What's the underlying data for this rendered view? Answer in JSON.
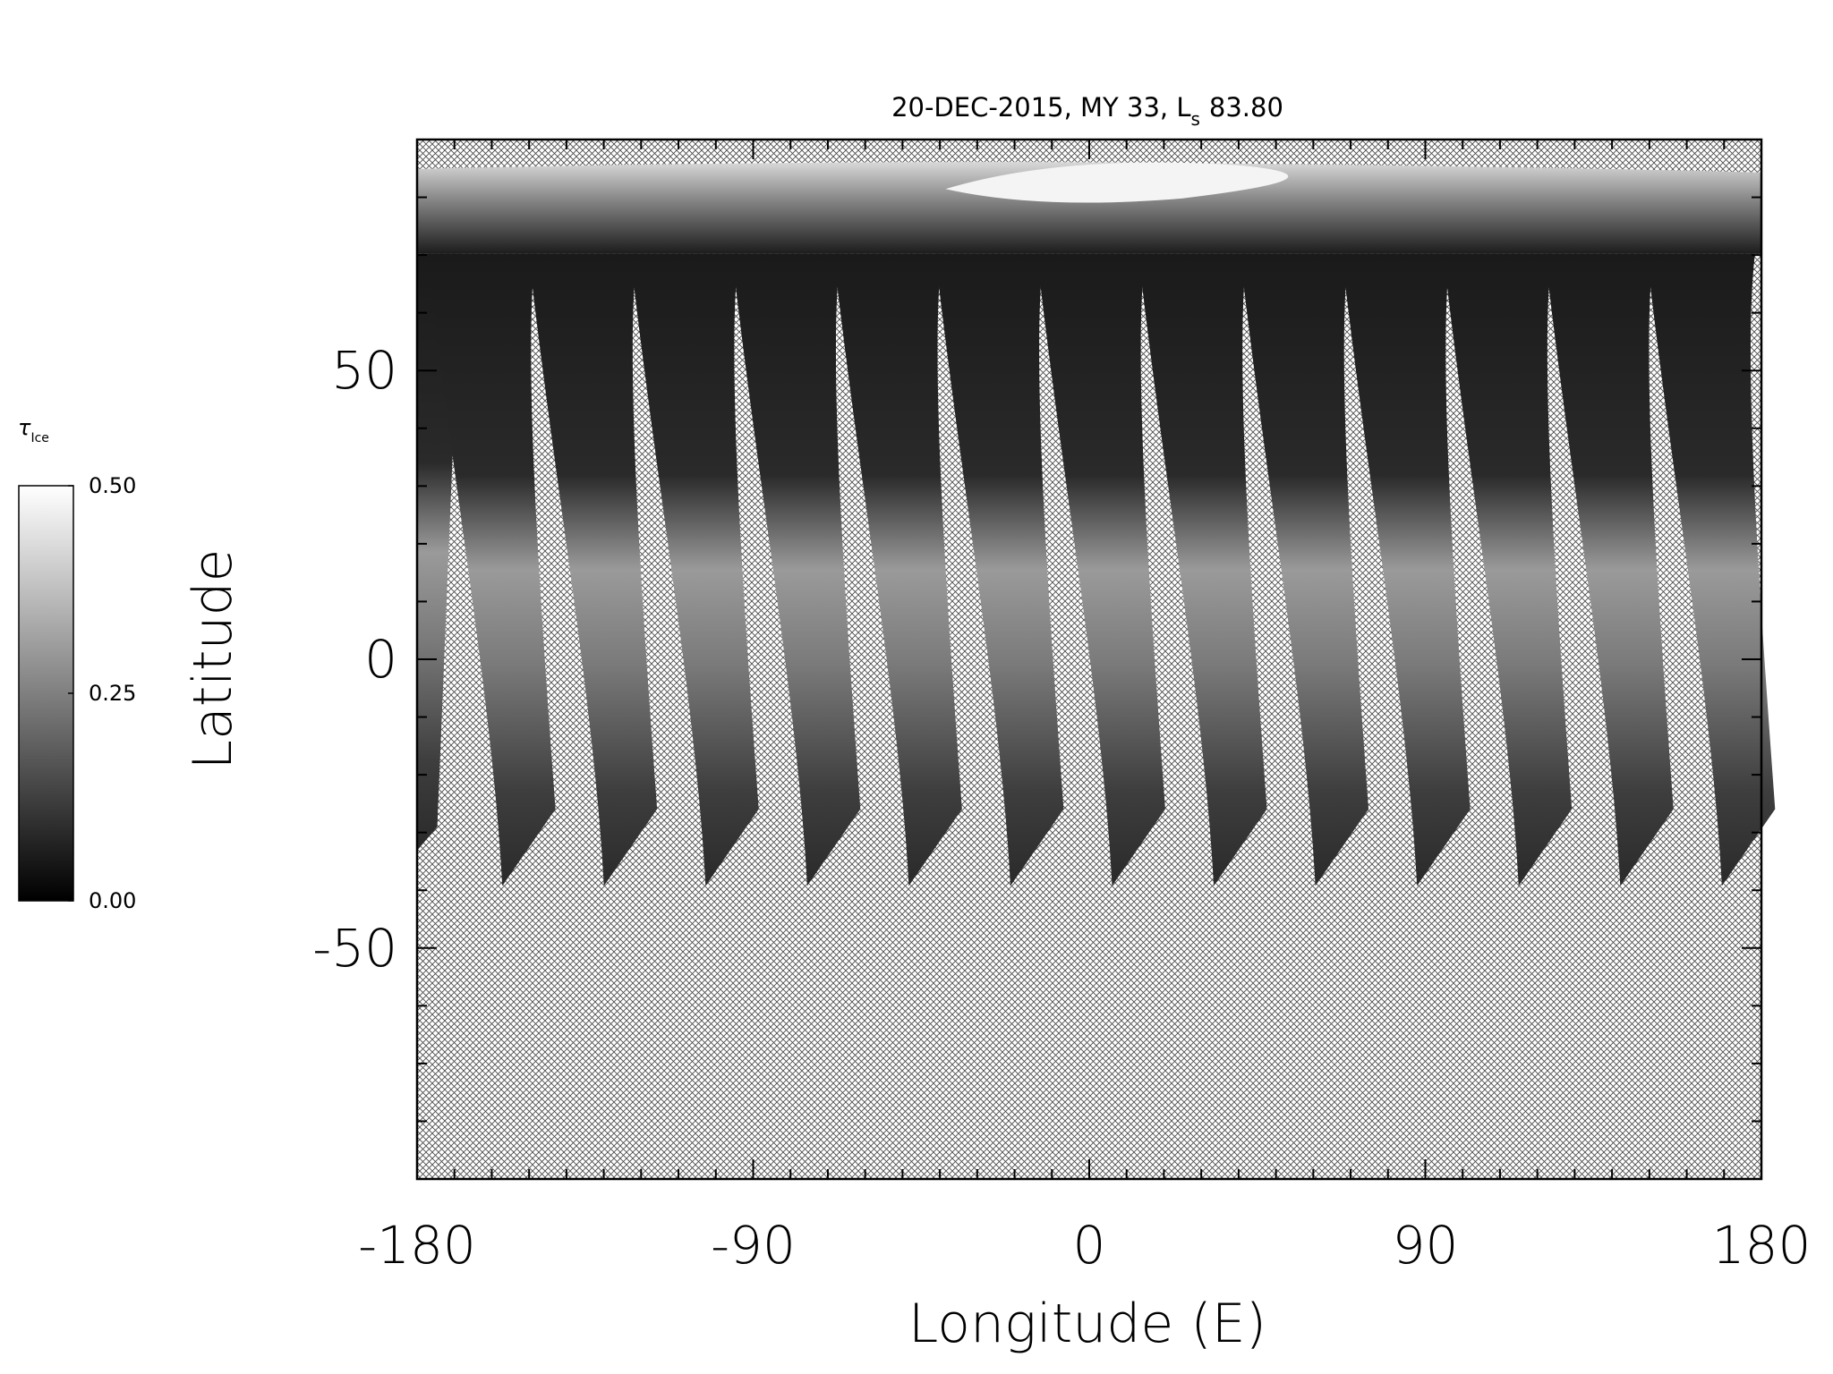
{
  "chart_data": {
    "type": "map",
    "title": {
      "main": "20-DEC-2015, MY 33,  L",
      "subscript": "s",
      "value": "83.80"
    },
    "xlabel": "Longitude (E)",
    "ylabel": "Latitude",
    "xlim": [
      -180,
      180
    ],
    "ylim": [
      -90,
      90
    ],
    "xticks": [
      -180,
      -90,
      0,
      90,
      180
    ],
    "yticks": [
      -50,
      0,
      50
    ],
    "xminorticks": [
      -170,
      -160,
      -150,
      -140,
      -130,
      -120,
      -110,
      -100,
      -80,
      -70,
      -60,
      -50,
      -40,
      -30,
      -20,
      -10,
      10,
      20,
      30,
      40,
      50,
      60,
      70,
      80,
      100,
      110,
      120,
      130,
      140,
      150,
      160,
      170
    ],
    "yminorticks": [
      -80,
      -70,
      -60,
      -40,
      -30,
      -20,
      -10,
      10,
      20,
      30,
      40,
      60,
      70,
      80
    ],
    "colorbar": {
      "label": "τ",
      "label_subscript": "Ice",
      "range": [
        0,
        0.5
      ],
      "colors": [
        "#000000",
        "#ffffff"
      ],
      "ticks": [
        {
          "value": 0,
          "label": "0.00"
        },
        {
          "value": 0.25,
          "label": "0.25"
        },
        {
          "value": 0.5,
          "label": "0.50"
        }
      ]
    }
  }
}
